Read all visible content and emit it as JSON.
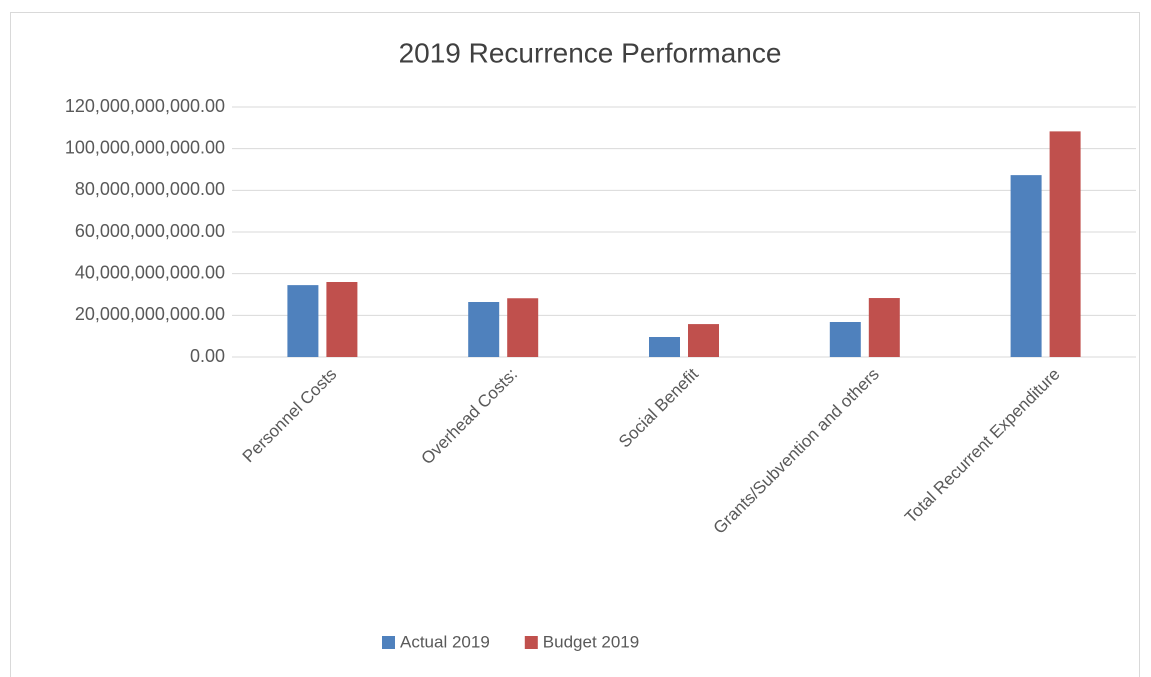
{
  "chart_data": {
    "type": "bar",
    "title": "2019 Recurrence Performance",
    "categories": [
      "Personnel Costs",
      "Overhead Costs:",
      "Social Benefit",
      "Grants/Subvention and others",
      "Total Recurrent Expenditure"
    ],
    "series": [
      {
        "name": "Actual 2019",
        "color": "#4f81bd",
        "values": [
          34500000000,
          26400000000,
          9600000000,
          16800000000,
          87300000000
        ]
      },
      {
        "name": "Budget 2019",
        "color": "#c0504d",
        "values": [
          36000000000,
          28200000000,
          15800000000,
          28300000000,
          108300000000
        ]
      }
    ],
    "ylim": [
      0,
      120000000000
    ],
    "yticks": [
      {
        "value": 0,
        "label": "0.00"
      },
      {
        "value": 20000000000,
        "label": "20,000,000,000.00"
      },
      {
        "value": 40000000000,
        "label": "40,000,000,000.00"
      },
      {
        "value": 60000000000,
        "label": "60,000,000,000.00"
      },
      {
        "value": 80000000000,
        "label": "80,000,000,000.00"
      },
      {
        "value": 100000000000,
        "label": "100,000,000,000.00"
      },
      {
        "value": 120000000000,
        "label": "120,000,000,000.00"
      }
    ],
    "grid": true,
    "legend": "bottom"
  }
}
